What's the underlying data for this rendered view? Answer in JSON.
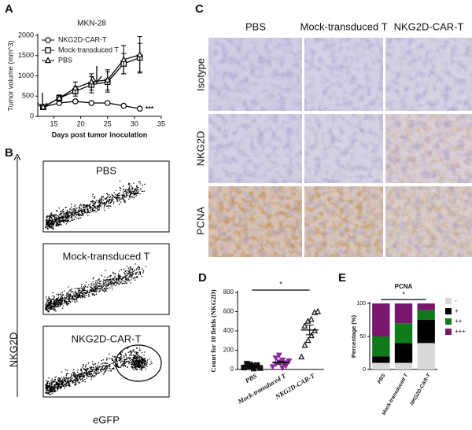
{
  "panel_labels": [
    "A",
    "B",
    "C",
    "D",
    "E"
  ],
  "chart_data": [
    {
      "type": "line",
      "title": "MKN-28",
      "x_label": "Days post tumor inoculation",
      "y_label": "Tumor volume (mm^3)",
      "xlim": [
        12,
        35
      ],
      "xticks": [
        15,
        20,
        25,
        30,
        35
      ],
      "ylim": [
        0,
        2000
      ],
      "yticks": [
        0,
        500,
        1000,
        1500,
        2000
      ],
      "x": [
        13,
        16,
        19,
        22,
        25,
        28,
        31
      ],
      "series": [
        {
          "name": "NKG2D-CAR-T",
          "marker": "circle",
          "color": "#000000",
          "values": [
            230,
            330,
            370,
            330,
            330,
            260,
            190
          ],
          "errors": [
            20,
            30,
            30,
            30,
            30,
            30,
            30
          ]
        },
        {
          "name": "Mock-transduced T",
          "marker": "square",
          "color": "#000000",
          "values": [
            230,
            450,
            620,
            780,
            850,
            1300,
            1450
          ],
          "errors": [
            30,
            80,
            120,
            200,
            250,
            250,
            350
          ]
        },
        {
          "name": "PBS",
          "marker": "triangle",
          "color": "#000000",
          "values": [
            230,
            450,
            700,
            850,
            900,
            1400,
            1520
          ],
          "errors": [
            30,
            60,
            150,
            200,
            250,
            350,
            450
          ]
        }
      ],
      "annotation": "***"
    },
    {
      "type": "strip",
      "y_label": "Count for 10 fields (NKG2D)",
      "categories": [
        "PBS",
        "Mock-transduced T",
        "NKG2D-CAR-T"
      ],
      "ylim": [
        0,
        800
      ],
      "yticks": [
        0,
        200,
        400,
        600,
        800
      ],
      "values": [
        [
          20,
          30,
          50,
          10,
          40,
          60,
          25,
          35,
          45,
          15
        ],
        [
          30,
          60,
          80,
          100,
          40,
          120,
          150,
          20,
          70,
          90
        ],
        [
          130,
          250,
          300,
          350,
          400,
          450,
          500,
          520,
          590,
          600
        ]
      ],
      "means": [
        35,
        70,
        410
      ],
      "errors": [
        10,
        15,
        50
      ],
      "colors": [
        "#111111",
        "#8a2a9a",
        "#111111"
      ],
      "markers": [
        "square",
        "triangle-down",
        "triangle-open"
      ],
      "annotation": "*"
    },
    {
      "type": "stacked_bar",
      "title": "PCNA",
      "y_label": "Percentage (%)",
      "categories": [
        "PBS",
        "Mock-transduced T",
        "NKG2D-CAR-T"
      ],
      "ylim": [
        0,
        100
      ],
      "yticks": [
        0,
        50,
        100
      ],
      "series": [
        {
          "name": "-",
          "color": "#d9d9d9",
          "values": [
            10,
            10,
            40
          ]
        },
        {
          "name": "+",
          "color": "#000000",
          "values": [
            10,
            30,
            35
          ]
        },
        {
          "name": "++",
          "color": "#0f7a1a",
          "values": [
            30,
            30,
            15
          ]
        },
        {
          "name": "+++",
          "color": "#7a1670",
          "values": [
            50,
            30,
            10
          ]
        }
      ],
      "annotation": "*"
    }
  ],
  "flow": {
    "y_label": "NKG2D",
    "x_label": "eGFP",
    "plots": [
      "PBS",
      "Mock-transduced T",
      "NKG2D-CAR-T"
    ]
  },
  "ihc": {
    "columns": [
      "PBS",
      "Mock-transduced T",
      "NKG2D-CAR-T"
    ],
    "rows": [
      "Isotype",
      "NKG2D",
      "PCNA"
    ]
  }
}
